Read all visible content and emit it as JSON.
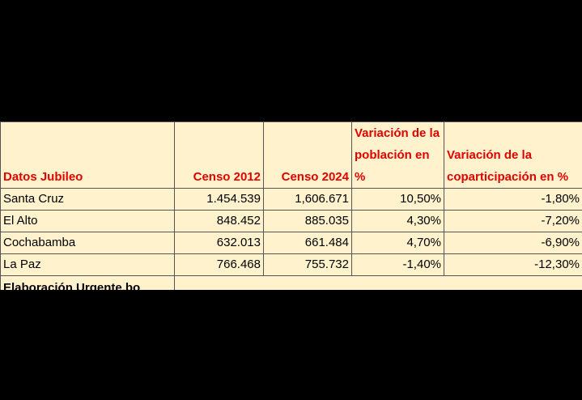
{
  "table": {
    "header": [
      "Datos Jubileo",
      "Censo 2012",
      "Censo 2024",
      "Variación de la población en %",
      "Variación de la coparticipación en %"
    ],
    "rows": [
      [
        "Santa Cruz",
        "1.454.539",
        "1,606.671",
        "10,50%",
        "-1,80%"
      ],
      [
        "El Alto",
        "848.452",
        "885.035",
        "4,30%",
        "-7,20%"
      ],
      [
        "Cochabamba",
        "632.013",
        "661.484",
        "4,70%",
        "-6,90%"
      ],
      [
        "La Paz",
        "766.468",
        "755.732",
        "-1,40%",
        "-12,30%"
      ]
    ],
    "footer": "Elaboración Urgente.bo"
  }
}
